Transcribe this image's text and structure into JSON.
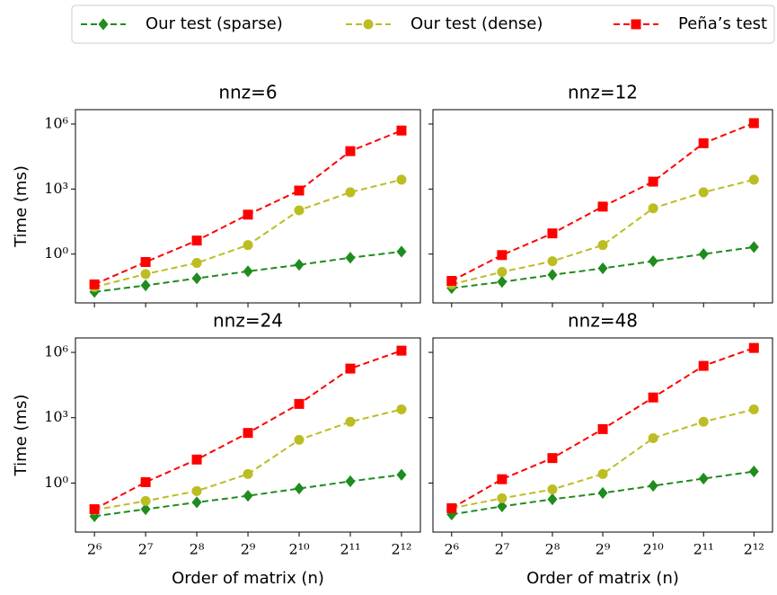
{
  "chart_data": [
    {
      "type": "line",
      "title": "nnz=6",
      "ylabel": "Time (ms)",
      "x": [
        64,
        128,
        256,
        512,
        1024,
        2048,
        4096
      ],
      "xlog": true,
      "ylog": true,
      "linestyle": "dashed",
      "xlim": [
        49.5,
        5290
      ],
      "ylim": [
        0.0056,
        4600000
      ],
      "xticks": [
        {
          "value": 64,
          "label": "2⁶"
        },
        {
          "value": 128,
          "label": "2⁷"
        },
        {
          "value": 256,
          "label": "2⁸"
        },
        {
          "value": 512,
          "label": "2⁹"
        },
        {
          "value": 1024,
          "label": "2¹⁰"
        },
        {
          "value": 2048,
          "label": "2¹¹"
        },
        {
          "value": 4096,
          "label": "2¹²"
        }
      ],
      "yticks": [
        {
          "value": 1,
          "label": "10⁰"
        },
        {
          "value": 1000,
          "label": "10³"
        },
        {
          "value": 1000000,
          "label": "10⁶"
        }
      ],
      "series": [
        {
          "name": "Our test (sparse)",
          "color": "#1e8c1e",
          "marker": "D",
          "values": [
            0.018,
            0.036,
            0.076,
            0.16,
            0.32,
            0.68,
            1.3
          ]
        },
        {
          "name": "Our test (dense)",
          "color": "#bcbd22",
          "marker": "o",
          "values": [
            0.03,
            0.12,
            0.39,
            2.6,
            105,
            710,
            2700
          ]
        },
        {
          "name": "Peña’s test",
          "color": "#ff0000",
          "marker": "s",
          "values": [
            0.04,
            0.43,
            4.2,
            66,
            850,
            56000,
            500000
          ]
        }
      ]
    },
    {
      "type": "line",
      "title": "nnz=12",
      "x": [
        64,
        128,
        256,
        512,
        1024,
        2048,
        4096
      ],
      "xlog": true,
      "ylog": true,
      "linestyle": "dashed",
      "xlim": [
        49.5,
        5290
      ],
      "ylim": [
        0.0056,
        4600000
      ],
      "xticks": [
        {
          "value": 64,
          "label": "2⁶"
        },
        {
          "value": 128,
          "label": "2⁷"
        },
        {
          "value": 256,
          "label": "2⁸"
        },
        {
          "value": 512,
          "label": "2⁹"
        },
        {
          "value": 1024,
          "label": "2¹⁰"
        },
        {
          "value": 2048,
          "label": "2¹¹"
        },
        {
          "value": 4096,
          "label": "2¹²"
        }
      ],
      "yticks": [
        {
          "value": 1,
          "label": "10⁰"
        },
        {
          "value": 1000,
          "label": "10³"
        },
        {
          "value": 1000000,
          "label": "10⁶"
        }
      ],
      "series": [
        {
          "name": "Our test (sparse)",
          "color": "#1e8c1e",
          "marker": "D",
          "values": [
            0.027,
            0.052,
            0.11,
            0.22,
            0.47,
            1,
            2.1
          ]
        },
        {
          "name": "Our test (dense)",
          "color": "#bcbd22",
          "marker": "o",
          "values": [
            0.04,
            0.15,
            0.47,
            2.6,
            130,
            710,
            2700
          ]
        },
        {
          "name": "Peña’s test",
          "color": "#ff0000",
          "marker": "s",
          "values": [
            0.058,
            0.9,
            9,
            155,
            2200,
            130000,
            1100000
          ]
        }
      ]
    },
    {
      "type": "line",
      "title": "nnz=24",
      "ylabel": "Time (ms)",
      "xlabel": "Order of matrix (n)",
      "x": [
        64,
        128,
        256,
        512,
        1024,
        2048,
        4096
      ],
      "xlog": true,
      "ylog": true,
      "linestyle": "dashed",
      "xlim": [
        49.5,
        5290
      ],
      "ylim": [
        0.0056,
        4600000
      ],
      "xticks": [
        {
          "value": 64,
          "label": "2⁶"
        },
        {
          "value": 128,
          "label": "2⁷"
        },
        {
          "value": 256,
          "label": "2⁸"
        },
        {
          "value": 512,
          "label": "2⁹"
        },
        {
          "value": 1024,
          "label": "2¹⁰"
        },
        {
          "value": 2048,
          "label": "2¹¹"
        },
        {
          "value": 4096,
          "label": "2¹²"
        }
      ],
      "yticks": [
        {
          "value": 1,
          "label": "10⁰"
        },
        {
          "value": 1000,
          "label": "10³"
        },
        {
          "value": 1000000,
          "label": "10⁶"
        }
      ],
      "series": [
        {
          "name": "Our test (sparse)",
          "color": "#1e8c1e",
          "marker": "D",
          "values": [
            0.03,
            0.063,
            0.13,
            0.26,
            0.56,
            1.2,
            2.4
          ]
        },
        {
          "name": "Our test (dense)",
          "color": "#bcbd22",
          "marker": "o",
          "values": [
            0.058,
            0.15,
            0.43,
            2.6,
            96,
            650,
            2400
          ]
        },
        {
          "name": "Peña’s test",
          "color": "#ff0000",
          "marker": "s",
          "values": [
            0.063,
            1.1,
            12,
            200,
            4300,
            180000,
            1200000
          ]
        }
      ]
    },
    {
      "type": "line",
      "title": "nnz=48",
      "xlabel": "Order of matrix (n)",
      "x": [
        64,
        128,
        256,
        512,
        1024,
        2048,
        4096
      ],
      "xlog": true,
      "ylog": true,
      "linestyle": "dashed",
      "xlim": [
        49.5,
        5290
      ],
      "ylim": [
        0.0056,
        4600000
      ],
      "xticks": [
        {
          "value": 64,
          "label": "2⁶"
        },
        {
          "value": 128,
          "label": "2⁷"
        },
        {
          "value": 256,
          "label": "2⁸"
        },
        {
          "value": 512,
          "label": "2⁹"
        },
        {
          "value": 1024,
          "label": "2¹⁰"
        },
        {
          "value": 2048,
          "label": "2¹¹"
        },
        {
          "value": 4096,
          "label": "2¹²"
        }
      ],
      "yticks": [
        {
          "value": 1,
          "label": "10⁰"
        },
        {
          "value": 1000,
          "label": "10³"
        },
        {
          "value": 1000000,
          "label": "10⁶"
        }
      ],
      "series": [
        {
          "name": "Our test (sparse)",
          "color": "#1e8c1e",
          "marker": "D",
          "values": [
            0.036,
            0.085,
            0.18,
            0.35,
            0.75,
            1.6,
            3.4
          ]
        },
        {
          "name": "Our test (dense)",
          "color": "#bcbd22",
          "marker": "o",
          "values": [
            0.07,
            0.2,
            0.51,
            2.6,
            115,
            650,
            2400
          ]
        },
        {
          "name": "Peña’s test",
          "color": "#ff0000",
          "marker": "s",
          "values": [
            0.07,
            1.5,
            14,
            300,
            8500,
            240000,
            1600000
          ]
        }
      ]
    }
  ]
}
